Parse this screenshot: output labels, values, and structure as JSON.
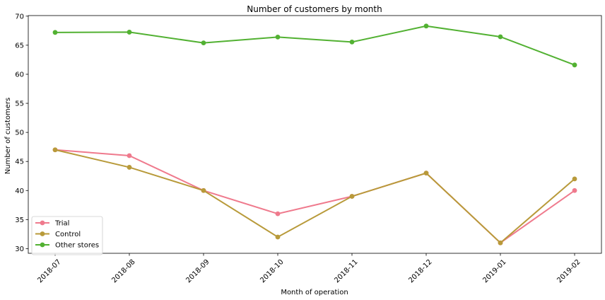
{
  "chart_data": {
    "type": "line",
    "title": "Number of customers by month",
    "xlabel": "Month of operation",
    "ylabel": "Number of customers",
    "categories": [
      "2018-07",
      "2018-08",
      "2018-09",
      "2018-10",
      "2018-11",
      "2018-12",
      "2019-01",
      "2019-02"
    ],
    "ylim": [
      29.2,
      70.1
    ],
    "yticks": [
      30,
      35,
      40,
      45,
      50,
      55,
      60,
      65,
      70
    ],
    "grid": false,
    "legend_position": "lower-left",
    "series": [
      {
        "name": "Trial",
        "color": "#ef7a8d",
        "values": [
          47,
          46,
          40,
          36,
          39,
          43,
          31,
          40
        ]
      },
      {
        "name": "Control",
        "color": "#b89a3a",
        "values": [
          47,
          44,
          40,
          32,
          39,
          43,
          31,
          42
        ]
      },
      {
        "name": "Other stores",
        "color": "#52b132",
        "values": [
          67.2,
          67.25,
          65.4,
          66.4,
          65.55,
          68.3,
          66.45,
          61.6
        ]
      }
    ]
  }
}
